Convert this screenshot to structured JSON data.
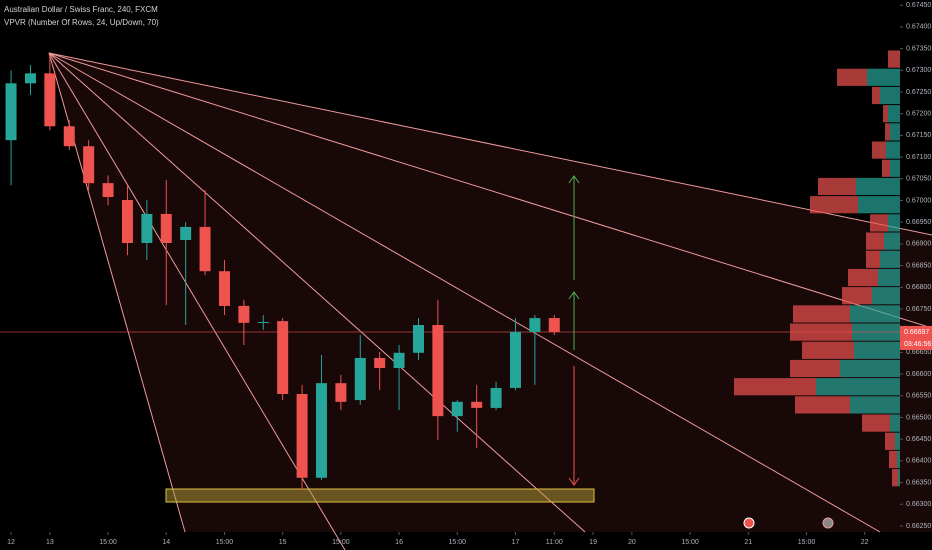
{
  "chart_data": {
    "type": "candlestick",
    "title": "Australian Dollar / Swiss Franc, 240, FXCM",
    "indicator": "VPVR (Number Of Rows, 24, Up/Down, 70)",
    "up_color": "#26a69a",
    "down_color": "#ef5350",
    "open": [
      0.67139,
      0.6727,
      0.67293,
      0.67171,
      0.67125,
      0.6704,
      0.67001,
      0.66902,
      0.66969,
      0.66909,
      0.66939,
      0.66837,
      0.66757,
      0.6672,
      0.66722,
      0.66554,
      0.66361,
      0.66579,
      0.6654,
      0.66637,
      0.66614,
      0.66649,
      0.66713,
      0.66503,
      0.66536,
      0.66522,
      0.66568,
      0.66697,
      0.66729
    ],
    "high": [
      0.673,
      0.67312,
      0.67335,
      0.67185,
      0.67139,
      0.67058,
      0.67035,
      0.67001,
      0.67047,
      0.6695,
      0.67024,
      0.66863,
      0.66771,
      0.66736,
      0.66729,
      0.66575,
      0.66644,
      0.66598,
      0.6669,
      0.66651,
      0.66667,
      0.66729,
      0.66771,
      0.6654,
      0.66575,
      0.66582,
      0.66729,
      0.66736,
      0.66736
    ],
    "low": [
      0.67035,
      0.67243,
      0.67162,
      0.67116,
      0.67024,
      0.66989,
      0.66874,
      0.66863,
      0.66759,
      0.66713,
      0.66828,
      0.66736,
      0.66667,
      0.66702,
      0.6654,
      0.66333,
      0.66356,
      0.66517,
      0.66529,
      0.66563,
      0.66517,
      0.66632,
      0.66448,
      0.66467,
      0.6643,
      0.66517,
      0.66563,
      0.66575,
      0.6669
    ],
    "close": [
      0.6727,
      0.67293,
      0.67171,
      0.67125,
      0.6704,
      0.67008,
      0.66902,
      0.66969,
      0.66902,
      0.66939,
      0.66837,
      0.66757,
      0.66718,
      0.6672,
      0.66554,
      0.66361,
      0.66579,
      0.66536,
      0.66637,
      0.66614,
      0.66649,
      0.66713,
      0.66503,
      0.66536,
      0.66522,
      0.66568,
      0.66697,
      0.66729,
      0.66697
    ],
    "xlim": [
      -0.57,
      45.82
    ],
    "xticks": [
      {
        "value": 0,
        "label": "12"
      },
      {
        "value": 2,
        "label": "13"
      },
      {
        "value": 5,
        "label": "15:00"
      },
      {
        "value": 8,
        "label": "14"
      },
      {
        "value": 11,
        "label": "15:00"
      },
      {
        "value": 14,
        "label": "15"
      },
      {
        "value": 17,
        "label": "15:00"
      },
      {
        "value": 20,
        "label": "16"
      },
      {
        "value": 23,
        "label": "15:00"
      },
      {
        "value": 26,
        "label": "17"
      },
      {
        "value": 28,
        "label": "11:00"
      },
      {
        "value": 30,
        "label": "19"
      },
      {
        "value": 32,
        "label": "20"
      },
      {
        "value": 35,
        "label": "15:00"
      },
      {
        "value": 38,
        "label": "21"
      },
      {
        "value": 41,
        "label": "15:00"
      },
      {
        "value": 44,
        "label": "22"
      }
    ],
    "ylim": [
      0.66236,
      0.67462
    ],
    "yticks": [
      {
        "value": 0.6745,
        "label": "0.67450"
      },
      {
        "value": 0.674,
        "label": "0.67400"
      },
      {
        "value": 0.6735,
        "label": "0.67350"
      },
      {
        "value": 0.673,
        "label": "0.67300"
      },
      {
        "value": 0.6725,
        "label": "0.67250"
      },
      {
        "value": 0.672,
        "label": "0.67200"
      },
      {
        "value": 0.6715,
        "label": "0.67150"
      },
      {
        "value": 0.671,
        "label": "0.67100"
      },
      {
        "value": 0.6705,
        "label": "0.67050"
      },
      {
        "value": 0.67,
        "label": "0.67000"
      },
      {
        "value": 0.6695,
        "label": "0.66950"
      },
      {
        "value": 0.669,
        "label": "0.66900"
      },
      {
        "value": 0.6685,
        "label": "0.66850"
      },
      {
        "value": 0.668,
        "label": "0.66800"
      },
      {
        "value": 0.6675,
        "label": "0.66750"
      },
      {
        "value": 0.667,
        "label": "0.66700"
      },
      {
        "value": 0.6665,
        "label": "0.66650"
      },
      {
        "value": 0.666,
        "label": "0.66600"
      },
      {
        "value": 0.6655,
        "label": "0.66550"
      },
      {
        "value": 0.665,
        "label": "0.66500"
      },
      {
        "value": 0.6645,
        "label": "0.66450"
      },
      {
        "value": 0.664,
        "label": "0.66400"
      },
      {
        "value": 0.6635,
        "label": "0.66350"
      },
      {
        "value": 0.663,
        "label": "0.66300"
      },
      {
        "value": 0.6625,
        "label": "0.66250"
      }
    ],
    "last_price": {
      "value": 0.66697,
      "label": "0.66697"
    },
    "countdown": "03:46:56",
    "volume_profile": {
      "up": [
        0,
        33,
        20,
        12,
        10,
        14,
        10,
        44,
        42,
        12,
        16,
        20,
        22,
        28,
        50,
        48,
        46,
        60,
        84,
        50,
        10,
        5,
        3,
        2
      ],
      "down": [
        12,
        30,
        8,
        5,
        5,
        14,
        8,
        38,
        48,
        18,
        18,
        14,
        30,
        30,
        57,
        62,
        52,
        50,
        82,
        55,
        28,
        10,
        8,
        6
      ]
    }
  }
}
